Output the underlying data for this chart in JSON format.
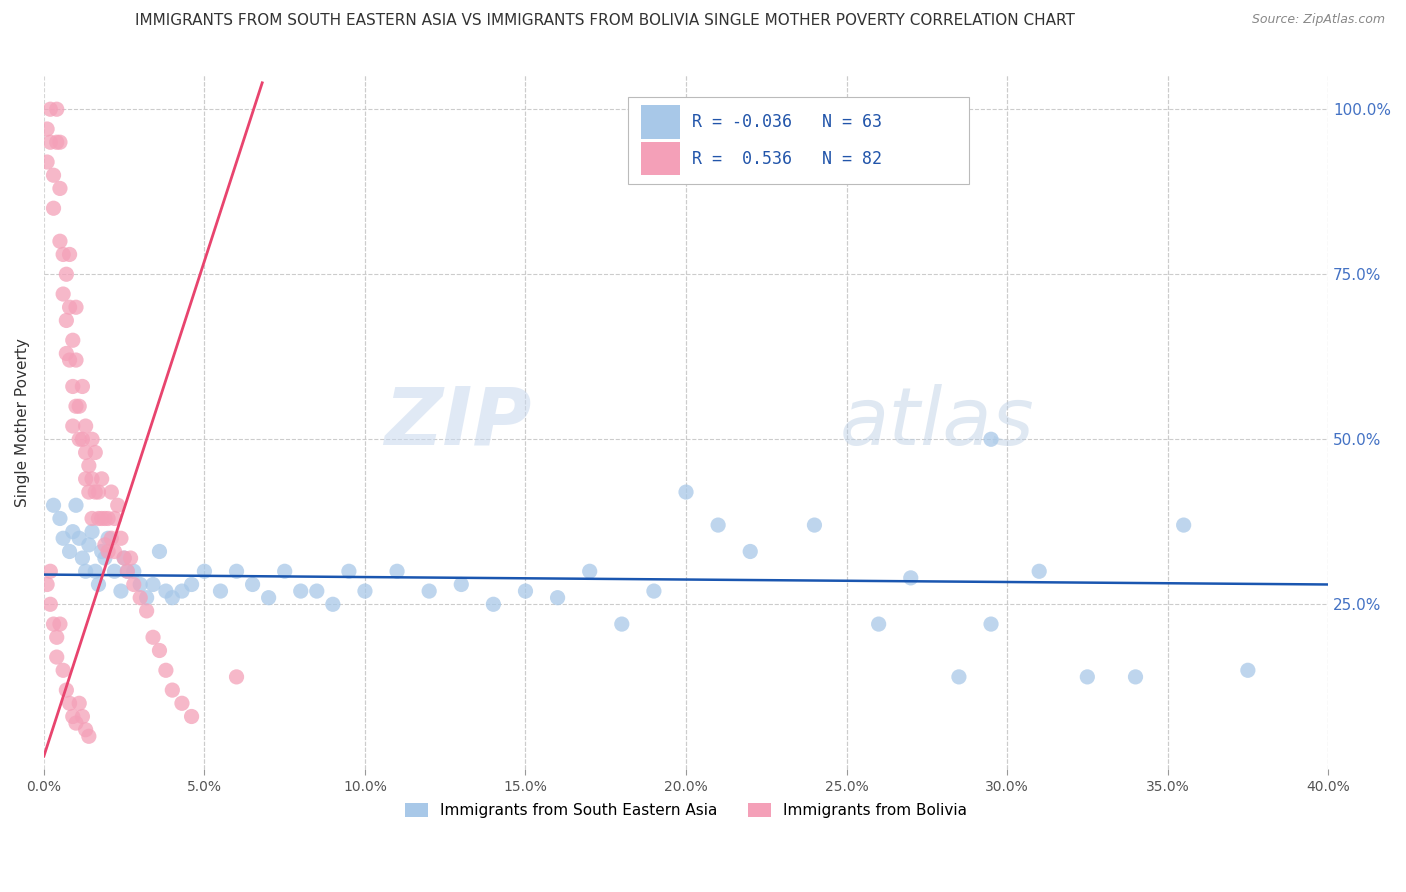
{
  "title": "IMMIGRANTS FROM SOUTH EASTERN ASIA VS IMMIGRANTS FROM BOLIVIA SINGLE MOTHER POVERTY CORRELATION CHART",
  "source": "Source: ZipAtlas.com",
  "ylabel": "Single Mother Poverty",
  "ylabel_right_ticks": [
    "100.0%",
    "75.0%",
    "50.0%",
    "25.0%"
  ],
  "ylabel_right_vals": [
    1.0,
    0.75,
    0.5,
    0.25
  ],
  "legend_label_blue": "Immigrants from South Eastern Asia",
  "legend_label_pink": "Immigrants from Bolivia",
  "blue_color": "#a8c8e8",
  "pink_color": "#f4a0b8",
  "trend_blue_color": "#1a56b0",
  "trend_pink_color": "#e8446e",
  "watermark_zip": "ZIP",
  "watermark_atlas": "atlas",
  "xmin": 0.0,
  "xmax": 0.4,
  "ymin": 0.0,
  "ymax": 1.05,
  "blue_scatter_x": [
    0.003,
    0.005,
    0.006,
    0.008,
    0.009,
    0.01,
    0.011,
    0.012,
    0.013,
    0.014,
    0.015,
    0.016,
    0.017,
    0.018,
    0.019,
    0.02,
    0.022,
    0.024,
    0.025,
    0.026,
    0.028,
    0.03,
    0.032,
    0.034,
    0.036,
    0.038,
    0.04,
    0.043,
    0.046,
    0.05,
    0.055,
    0.06,
    0.065,
    0.07,
    0.075,
    0.08,
    0.085,
    0.09,
    0.095,
    0.1,
    0.11,
    0.12,
    0.13,
    0.14,
    0.15,
    0.16,
    0.17,
    0.18,
    0.19,
    0.2,
    0.21,
    0.22,
    0.24,
    0.26,
    0.27,
    0.285,
    0.295,
    0.31,
    0.325,
    0.34,
    0.355,
    0.375,
    0.295
  ],
  "blue_scatter_y": [
    0.4,
    0.38,
    0.35,
    0.33,
    0.36,
    0.4,
    0.35,
    0.32,
    0.3,
    0.34,
    0.36,
    0.3,
    0.28,
    0.33,
    0.32,
    0.35,
    0.3,
    0.27,
    0.32,
    0.3,
    0.3,
    0.28,
    0.26,
    0.28,
    0.33,
    0.27,
    0.26,
    0.27,
    0.28,
    0.3,
    0.27,
    0.3,
    0.28,
    0.26,
    0.3,
    0.27,
    0.27,
    0.25,
    0.3,
    0.27,
    0.3,
    0.27,
    0.28,
    0.25,
    0.27,
    0.26,
    0.3,
    0.22,
    0.27,
    0.42,
    0.37,
    0.33,
    0.37,
    0.22,
    0.29,
    0.14,
    0.22,
    0.3,
    0.14,
    0.14,
    0.37,
    0.15,
    0.5
  ],
  "blue_scatter_size": [
    200,
    120,
    120,
    120,
    120,
    120,
    120,
    120,
    120,
    120,
    120,
    120,
    120,
    120,
    120,
    120,
    120,
    120,
    120,
    120,
    120,
    120,
    120,
    120,
    120,
    120,
    120,
    120,
    120,
    120,
    120,
    120,
    120,
    120,
    120,
    120,
    120,
    120,
    120,
    120,
    120,
    120,
    120,
    120,
    120,
    120,
    120,
    120,
    120,
    120,
    120,
    120,
    120,
    120,
    120,
    120,
    120,
    120,
    120,
    120,
    120,
    120,
    200
  ],
  "pink_scatter_x": [
    0.001,
    0.001,
    0.002,
    0.002,
    0.003,
    0.003,
    0.004,
    0.004,
    0.005,
    0.005,
    0.005,
    0.006,
    0.006,
    0.007,
    0.007,
    0.007,
    0.008,
    0.008,
    0.008,
    0.009,
    0.009,
    0.009,
    0.01,
    0.01,
    0.01,
    0.011,
    0.011,
    0.012,
    0.012,
    0.013,
    0.013,
    0.013,
    0.014,
    0.014,
    0.015,
    0.015,
    0.015,
    0.016,
    0.016,
    0.017,
    0.017,
    0.018,
    0.018,
    0.019,
    0.019,
    0.02,
    0.02,
    0.021,
    0.021,
    0.022,
    0.022,
    0.023,
    0.024,
    0.025,
    0.026,
    0.027,
    0.028,
    0.03,
    0.032,
    0.034,
    0.036,
    0.038,
    0.04,
    0.043,
    0.046,
    0.001,
    0.002,
    0.002,
    0.003,
    0.004,
    0.004,
    0.005,
    0.006,
    0.007,
    0.008,
    0.009,
    0.01,
    0.011,
    0.012,
    0.013,
    0.014,
    0.06
  ],
  "pink_scatter_y": [
    0.97,
    0.92,
    1.0,
    0.95,
    0.9,
    0.85,
    1.0,
    0.95,
    0.95,
    0.88,
    0.8,
    0.78,
    0.72,
    0.75,
    0.68,
    0.63,
    0.78,
    0.7,
    0.62,
    0.65,
    0.58,
    0.52,
    0.7,
    0.62,
    0.55,
    0.55,
    0.5,
    0.58,
    0.5,
    0.48,
    0.52,
    0.44,
    0.46,
    0.42,
    0.5,
    0.44,
    0.38,
    0.48,
    0.42,
    0.42,
    0.38,
    0.44,
    0.38,
    0.38,
    0.34,
    0.38,
    0.33,
    0.42,
    0.35,
    0.38,
    0.33,
    0.4,
    0.35,
    0.32,
    0.3,
    0.32,
    0.28,
    0.26,
    0.24,
    0.2,
    0.18,
    0.15,
    0.12,
    0.1,
    0.08,
    0.28,
    0.3,
    0.25,
    0.22,
    0.2,
    0.17,
    0.22,
    0.15,
    0.12,
    0.1,
    0.08,
    0.07,
    0.1,
    0.08,
    0.06,
    0.05,
    0.14
  ],
  "blue_trend_x": [
    0.0,
    0.4
  ],
  "blue_trend_y": [
    0.295,
    0.28
  ],
  "pink_trend_x": [
    0.0,
    0.068
  ],
  "pink_trend_y": [
    0.02,
    1.04
  ]
}
